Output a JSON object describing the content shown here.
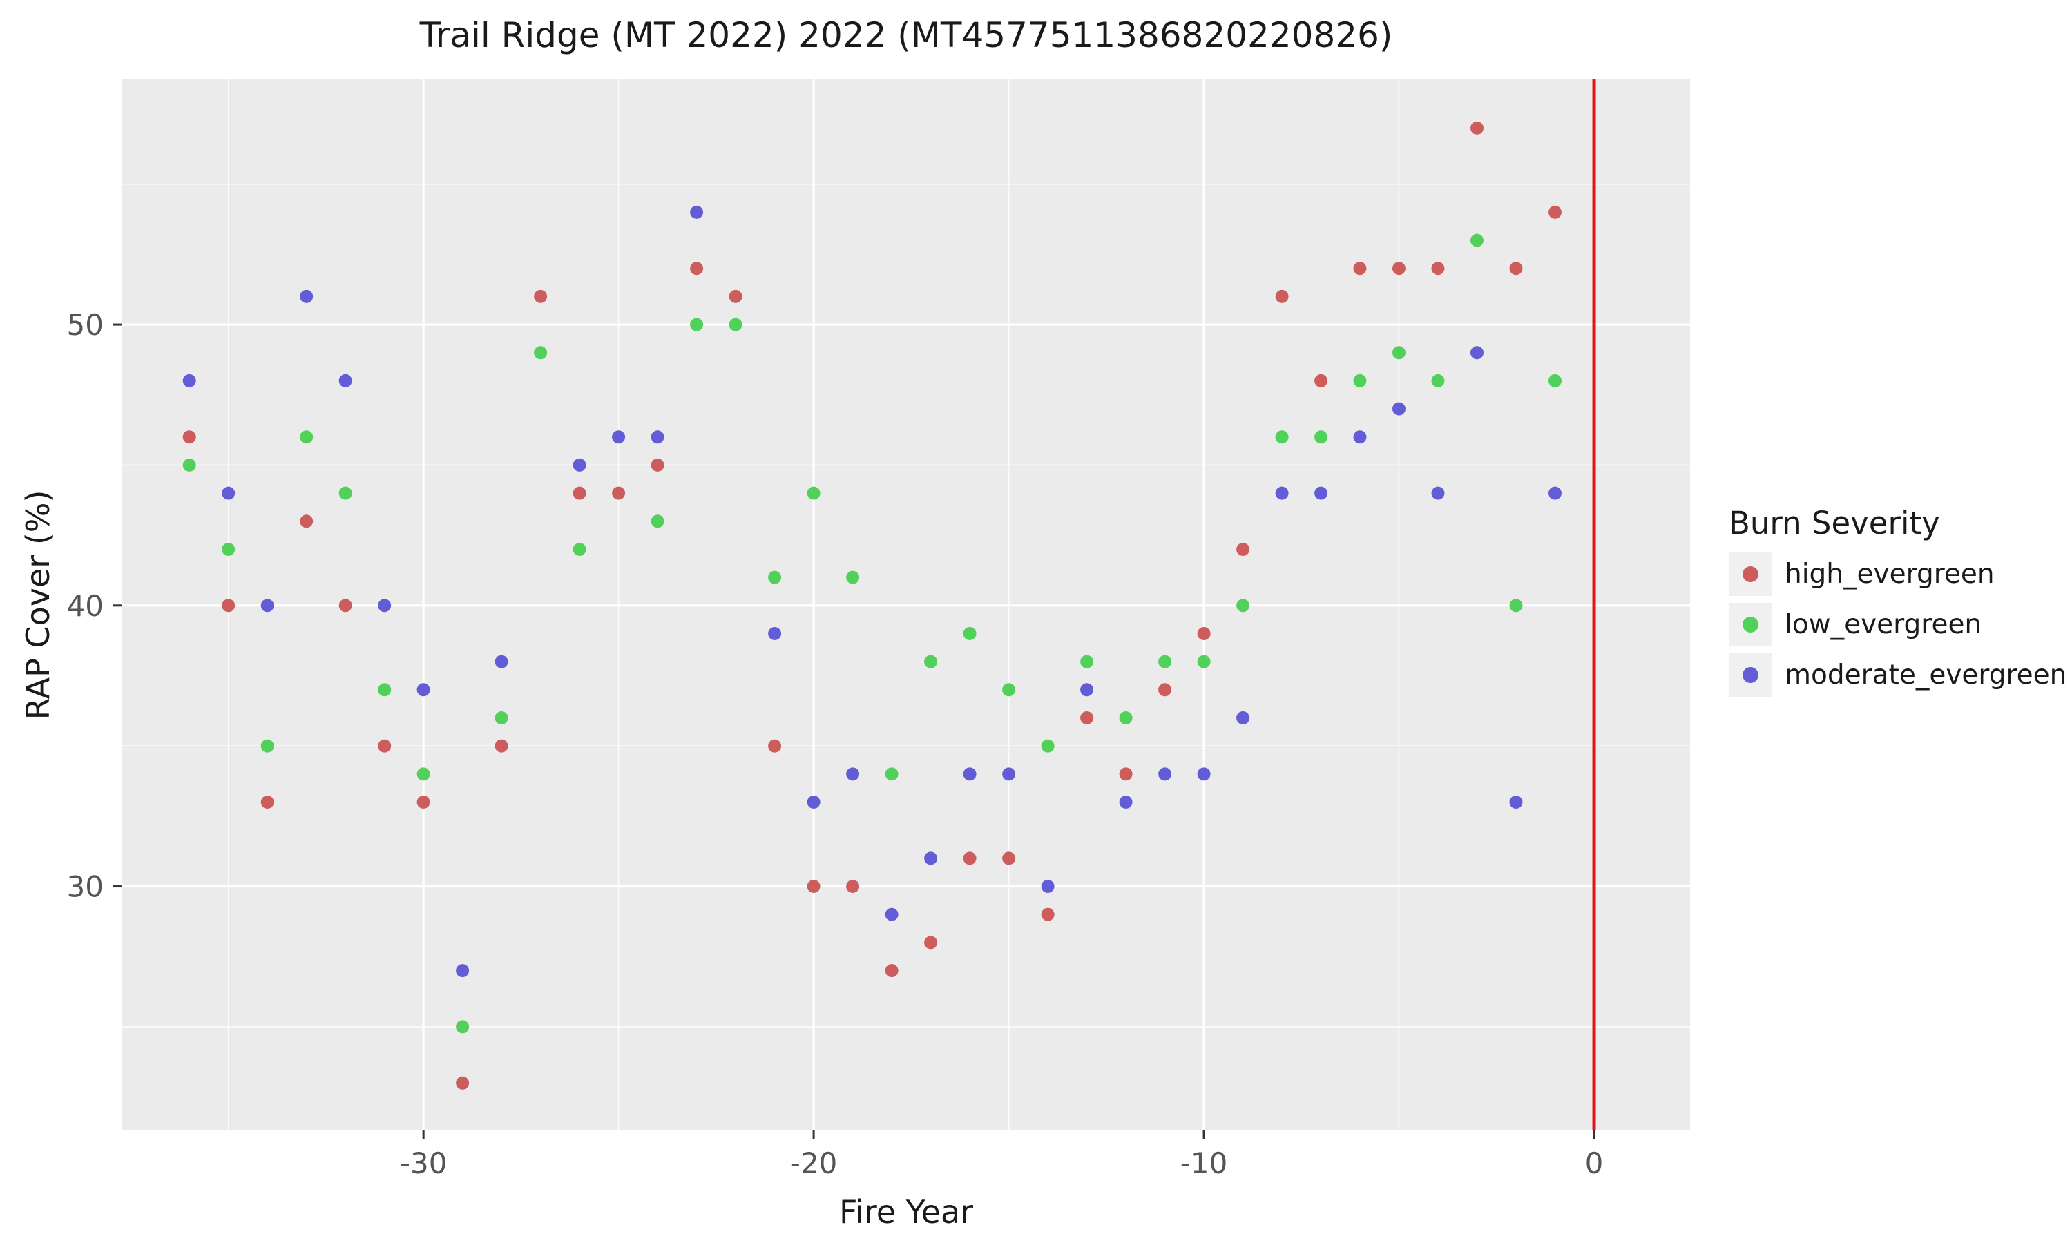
{
  "chart_data": {
    "type": "scatter",
    "title": "Trail Ridge (MT 2022) 2022 (MT4577511386820220826)",
    "xlabel": "Fire Year",
    "ylabel": "RAP Cover (%)",
    "legend_title": "Burn Severity",
    "legend_position": "right",
    "grid": true,
    "panel_bg": "#ebebeb",
    "grid_color": "#ffffff",
    "tick_label_color": "#555555",
    "xlim": [
      -37.72,
      2.46
    ],
    "ylim": [
      21.31,
      58.73
    ],
    "xticks": [
      -30,
      -20,
      -10,
      0
    ],
    "yticks": [
      30,
      40,
      50
    ],
    "x_minor_ticks": [
      -35,
      -25,
      -15,
      -5
    ],
    "y_minor_ticks": [
      25,
      35,
      45,
      55
    ],
    "vline": {
      "x": 0,
      "color": "#e81414"
    },
    "series": [
      {
        "name": "high_evergreen",
        "color": "#cd5c5c",
        "points": [
          [
            -36,
            46
          ],
          [
            -35,
            40
          ],
          [
            -34,
            33
          ],
          [
            -33,
            43
          ],
          [
            -32,
            40
          ],
          [
            -31,
            35
          ],
          [
            -30,
            33
          ],
          [
            -29,
            23
          ],
          [
            -28,
            35
          ],
          [
            -27,
            51
          ],
          [
            -26,
            44
          ],
          [
            -25,
            44
          ],
          [
            -24,
            45
          ],
          [
            -23,
            52
          ],
          [
            -22,
            51
          ],
          [
            -21,
            35
          ],
          [
            -20,
            30
          ],
          [
            -19,
            30
          ],
          [
            -18,
            27
          ],
          [
            -17,
            28
          ],
          [
            -16,
            31
          ],
          [
            -15,
            31
          ],
          [
            -14,
            29
          ],
          [
            -13,
            36
          ],
          [
            -12,
            34
          ],
          [
            -11,
            37
          ],
          [
            -10,
            39
          ],
          [
            -9,
            42
          ],
          [
            -8,
            51
          ],
          [
            -7,
            48
          ],
          [
            -6,
            52
          ],
          [
            -5,
            52
          ],
          [
            -4,
            52
          ],
          [
            -3,
            57
          ],
          [
            -2,
            52
          ],
          [
            -1,
            54
          ]
        ]
      },
      {
        "name": "low_evergreen",
        "color": "#52d15a",
        "points": [
          [
            -36,
            45
          ],
          [
            -35,
            42
          ],
          [
            -34,
            35
          ],
          [
            -33,
            46
          ],
          [
            -32,
            44
          ],
          [
            -31,
            37
          ],
          [
            -30,
            34
          ],
          [
            -29,
            25
          ],
          [
            -28,
            36
          ],
          [
            -27,
            49
          ],
          [
            -26,
            42
          ],
          [
            -24,
            43
          ],
          [
            -23,
            50
          ],
          [
            -22,
            50
          ],
          [
            -21,
            41
          ],
          [
            -20,
            44
          ],
          [
            -19,
            41
          ],
          [
            -18,
            34
          ],
          [
            -17,
            38
          ],
          [
            -16,
            39
          ],
          [
            -15,
            37
          ],
          [
            -14,
            35
          ],
          [
            -13,
            38
          ],
          [
            -12,
            36
          ],
          [
            -11,
            38
          ],
          [
            -10,
            38
          ],
          [
            -9,
            40
          ],
          [
            -8,
            46
          ],
          [
            -7,
            46
          ],
          [
            -6,
            48
          ],
          [
            -5,
            49
          ],
          [
            -4,
            48
          ],
          [
            -3,
            53
          ],
          [
            -2,
            40
          ],
          [
            -1,
            48
          ]
        ]
      },
      {
        "name": "moderate_evergreen",
        "color": "#625dd6",
        "points": [
          [
            -36,
            48
          ],
          [
            -35,
            44
          ],
          [
            -34,
            40
          ],
          [
            -33,
            51
          ],
          [
            -32,
            48
          ],
          [
            -31,
            40
          ],
          [
            -30,
            37
          ],
          [
            -29,
            27
          ],
          [
            -28,
            38
          ],
          [
            -26,
            45
          ],
          [
            -25,
            46
          ],
          [
            -24,
            46
          ],
          [
            -23,
            54
          ],
          [
            -21,
            39
          ],
          [
            -20,
            33
          ],
          [
            -19,
            34
          ],
          [
            -18,
            29
          ],
          [
            -17,
            31
          ],
          [
            -16,
            34
          ],
          [
            -15,
            34
          ],
          [
            -14,
            30
          ],
          [
            -13,
            37
          ],
          [
            -12,
            33
          ],
          [
            -11,
            34
          ],
          [
            -10,
            34
          ],
          [
            -9,
            36
          ],
          [
            -8,
            44
          ],
          [
            -7,
            44
          ],
          [
            -6,
            46
          ],
          [
            -5,
            47
          ],
          [
            -4,
            44
          ],
          [
            -3,
            49
          ],
          [
            -2,
            33
          ],
          [
            -1,
            44
          ]
        ]
      }
    ]
  }
}
